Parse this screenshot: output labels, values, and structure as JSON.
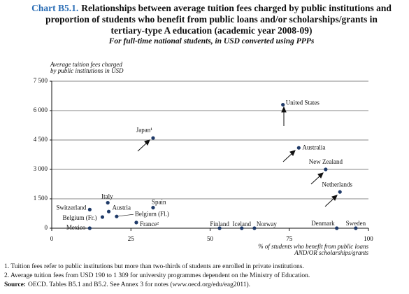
{
  "chart_label": "Chart B5.1.",
  "chart_data": {
    "type": "scatter",
    "title": "Relationships between average tuition fees charged by public institutions and proportion of students who benefit from public loans and/or scholarships/grants in tertiary-type A education (academic year 2008-09)",
    "subtitle": "For full-time national students, in USD converted using PPPs",
    "y_label": [
      "Average tuition fees charged",
      "by public institutions in USD"
    ],
    "x_label": [
      "% of students who benefit from public loans",
      "AND/OR scholarships/grants"
    ],
    "labels": [
      "United States",
      "Japan¹",
      "Australia",
      "New Zealand",
      "Netherlands",
      "Italy",
      "Spain",
      "Austria",
      "Switzerland",
      "Belgium (Fr.)",
      "Belgium (Fl.)",
      "France²",
      "Mexico",
      "Finland",
      "Iceland",
      "Norway",
      "Denmark",
      "Sweden"
    ],
    "x": [
      73,
      32,
      78,
      86.5,
      91,
      17.7,
      32,
      18,
      12,
      16,
      20.5,
      26.7,
      12,
      53,
      60,
      64,
      90,
      96
    ],
    "values": [
      6300,
      4600,
      4100,
      3000,
      1850,
      1300,
      1050,
      850,
      950,
      570,
      600,
      290,
      0,
      0,
      0,
      0,
      0,
      0
    ],
    "color": "#1f3a68",
    "xlim": [
      0,
      100
    ],
    "xticks": [
      0,
      25,
      50,
      75,
      100
    ],
    "ylim": [
      0,
      7500
    ],
    "yticks": [
      0,
      {
        "value": 1500,
        "label": "1 500"
      },
      {
        "value": 3000,
        "label": "3 000"
      },
      {
        "value": 4500,
        "label": "4 500"
      },
      {
        "value": 6000,
        "label": "6 000"
      },
      {
        "value": 7500,
        "label": "7 500"
      }
    ],
    "grid": true
  },
  "footnotes": [
    "1. Tuition fees refer to public institutions but more than two-thirds of students are enrolled in private institutions.",
    "2. Average tuition fees from USD 190 to 1 309 for university programmes dependent on the Ministry of Education."
  ],
  "source": {
    "label": "Source:",
    "text": "OECD. Tables B5.1 and B5.2. See Annex 3 for notes (www.oecd.org/edu/eag2011)."
  }
}
